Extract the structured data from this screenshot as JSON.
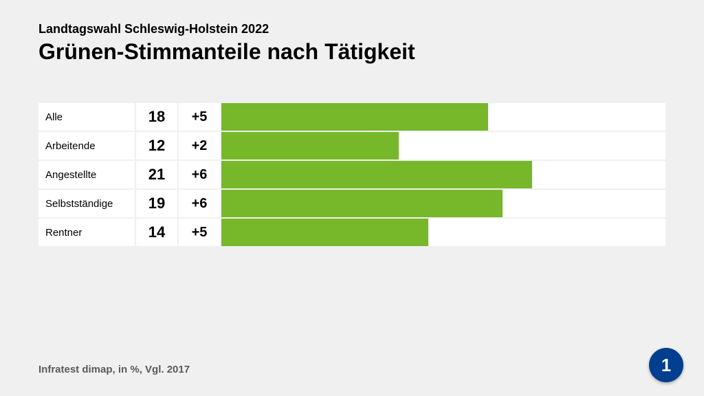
{
  "header": {
    "subtitle": "Landtagswahl Schleswig-Holstein 2022",
    "title": "Grünen-Stimmanteile nach Tätigkeit"
  },
  "chart": {
    "type": "bar",
    "bar_color": "#76b82a",
    "background_color": "#f0f0f0",
    "cell_background": "#ffffff",
    "max_value": 30,
    "label_fontsize": 15,
    "value_fontsize": 22,
    "change_fontsize": 20,
    "rows": [
      {
        "label": "Alle",
        "value": 18,
        "change": "+5"
      },
      {
        "label": "Arbeitende",
        "value": 12,
        "change": "+2"
      },
      {
        "label": "Angestellte",
        "value": 21,
        "change": "+6"
      },
      {
        "label": "Selbstständige",
        "value": 19,
        "change": "+6"
      },
      {
        "label": "Rentner",
        "value": 14,
        "change": "+5"
      }
    ]
  },
  "source": "Infratest dimap, in %, Vgl. 2017",
  "logo": {
    "text": "1",
    "bg_color": "#003e8f",
    "text_color": "#ffffff"
  }
}
